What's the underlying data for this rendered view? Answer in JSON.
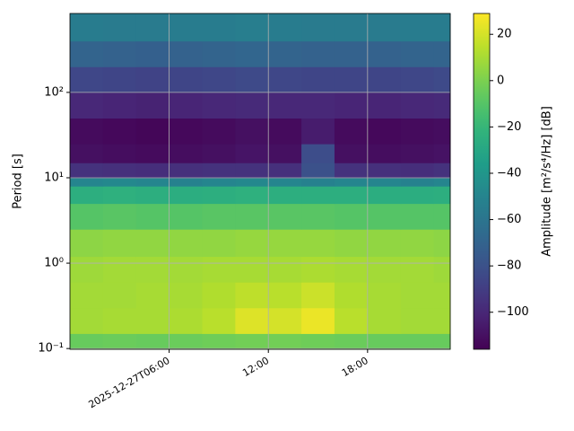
{
  "chart_data": {
    "type": "heatmap",
    "ylabel": "Period [s]",
    "colorbar_label": "Amplitude [m²/s⁴/Hz] [dB]",
    "colormap": "viridis",
    "yscale": "log",
    "grid": true,
    "xlim": [
      0,
      23
    ],
    "xticks": [
      {
        "value": 6,
        "label": "2025-12-27T06:00"
      },
      {
        "value": 12,
        "label": "12:00"
      },
      {
        "value": 18,
        "label": "18:00"
      }
    ],
    "ylim": [
      0.098,
      840
    ],
    "yticks": [
      {
        "value": 0.1,
        "label": "10⁻¹"
      },
      {
        "value": 1,
        "label": "10⁰"
      },
      {
        "value": 10,
        "label": "10¹"
      },
      {
        "value": 100,
        "label": "10²"
      }
    ],
    "clim": [
      -116,
      29
    ],
    "cticks": [
      20,
      0,
      {
        "value": -20,
        "label": "−20"
      },
      {
        "value": -40,
        "label": "−40"
      },
      {
        "value": -60,
        "label": "−60"
      },
      {
        "value": -80,
        "label": "−80"
      },
      {
        "value": -100,
        "label": "−100"
      }
    ],
    "x_edges": [
      0,
      2,
      4,
      6,
      8,
      10,
      12,
      14,
      16,
      18,
      20,
      22,
      23
    ],
    "y_edges": [
      0.098,
      0.15,
      0.3,
      0.6,
      1.2,
      2.5,
      5,
      8,
      10,
      15,
      25,
      50,
      100,
      200,
      400,
      840
    ],
    "z": [
      [
        -5,
        -4,
        -5,
        -4,
        -3,
        -2,
        -2,
        -3,
        -4,
        -5,
        -5,
        -5
      ],
      [
        9,
        10,
        10,
        11,
        14,
        22,
        20,
        25,
        14,
        10,
        9,
        9
      ],
      [
        9,
        9,
        10,
        10,
        12,
        15,
        14,
        18,
        12,
        10,
        9,
        9
      ],
      [
        8,
        9,
        9,
        9,
        10,
        10,
        10,
        11,
        10,
        9,
        9,
        8
      ],
      [
        4,
        5,
        5,
        5,
        5,
        6,
        6,
        6,
        5,
        5,
        5,
        4
      ],
      [
        -10,
        -9,
        -10,
        -10,
        -9,
        -9,
        -9,
        -9,
        -10,
        -10,
        -10,
        -10
      ],
      [
        -25,
        -24,
        -25,
        -26,
        -25,
        -24,
        -25,
        -25,
        -25,
        -26,
        -26,
        -25
      ],
      [
        -50,
        -48,
        -50,
        -52,
        -50,
        -48,
        -50,
        -52,
        -50,
        -50,
        -52,
        -50
      ],
      [
        -95,
        -96,
        -97,
        -96,
        -95,
        -95,
        -96,
        -80,
        -95,
        -96,
        -97,
        -95
      ],
      [
        -110,
        -111,
        -112,
        -111,
        -110,
        -108,
        -110,
        -82,
        -110,
        -111,
        -110,
        -109
      ],
      [
        -112,
        -113,
        -114,
        -113,
        -112,
        -110,
        -112,
        -105,
        -112,
        -113,
        -112,
        -111
      ],
      [
        -100,
        -101,
        -102,
        -101,
        -100,
        -99,
        -100,
        -100,
        -101,
        -101,
        -100,
        -99
      ],
      [
        -85,
        -86,
        -87,
        -86,
        -85,
        -84,
        -85,
        -86,
        -86,
        -86,
        -85,
        -84
      ],
      [
        -70,
        -71,
        -72,
        -71,
        -70,
        -69,
        -70,
        -71,
        -71,
        -71,
        -70,
        -70
      ],
      [
        -55,
        -56,
        -56,
        -55,
        -55,
        -54,
        -55,
        -56,
        -56,
        -56,
        -55,
        -55
      ]
    ]
  }
}
